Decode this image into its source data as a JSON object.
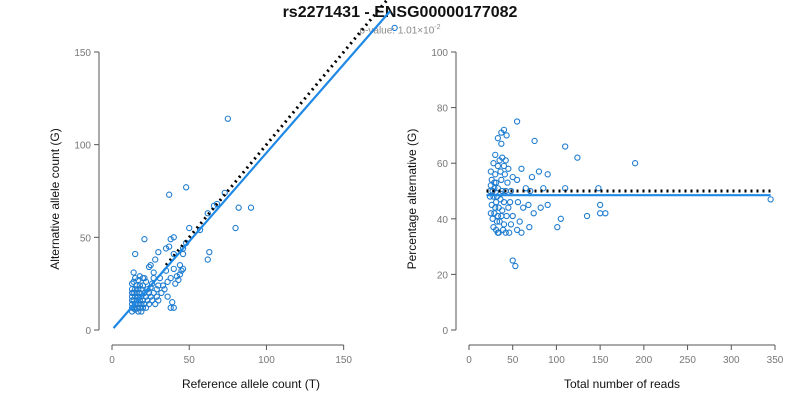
{
  "header": {
    "title": "rs2271431 - ENSG00000177082",
    "pvalue_prefix": "p-value: 1.01×10",
    "pvalue_exponent": "-2"
  },
  "colors": {
    "points": "#1f7ccf",
    "fit_line": "#1e88e5",
    "reference_line": "#000000"
  },
  "chart_data": [
    {
      "type": "scatter",
      "xlabel": "Reference allele count (T)",
      "ylabel": "Alternative allele count (G)",
      "xlim": [
        0,
        180
      ],
      "ylim": [
        0,
        150
      ],
      "xticks": [
        0,
        50,
        100,
        150
      ],
      "yticks": [
        0,
        50,
        100,
        150
      ],
      "grid": false,
      "reference_line": {
        "style": "dotted",
        "from": [
          35,
          35
        ],
        "to": [
          180,
          180
        ]
      },
      "fit_line": {
        "from": [
          1,
          1
        ],
        "to": [
          180,
          172
        ]
      },
      "points": [
        [
          183,
          163
        ],
        [
          75,
          114
        ],
        [
          73,
          74
        ],
        [
          68,
          68
        ],
        [
          66,
          67
        ],
        [
          90,
          66
        ],
        [
          82,
          66
        ],
        [
          62,
          63
        ],
        [
          48,
          77
        ],
        [
          37,
          73
        ],
        [
          57,
          54
        ],
        [
          50,
          55
        ],
        [
          80,
          55
        ],
        [
          38,
          49
        ],
        [
          40,
          50
        ],
        [
          48,
          47
        ],
        [
          37,
          45
        ],
        [
          35,
          44
        ],
        [
          46,
          44
        ],
        [
          46,
          41
        ],
        [
          63,
          42
        ],
        [
          62,
          38
        ],
        [
          40,
          41
        ],
        [
          30,
          42
        ],
        [
          28,
          38
        ],
        [
          25,
          35
        ],
        [
          44,
          35
        ],
        [
          46,
          33
        ],
        [
          40,
          33
        ],
        [
          35,
          32
        ],
        [
          42,
          29
        ],
        [
          44,
          30
        ],
        [
          38,
          28
        ],
        [
          31,
          28
        ],
        [
          36,
          26
        ],
        [
          41,
          25
        ],
        [
          30,
          24
        ],
        [
          25,
          23
        ],
        [
          22,
          26
        ],
        [
          27,
          31
        ],
        [
          21,
          49
        ],
        [
          24,
          34
        ],
        [
          20,
          28
        ],
        [
          21,
          28
        ],
        [
          17,
          27
        ],
        [
          18,
          29
        ],
        [
          14,
          31
        ],
        [
          15,
          41
        ],
        [
          13,
          25
        ],
        [
          13,
          22
        ],
        [
          13,
          20
        ],
        [
          13,
          18
        ],
        [
          13,
          16
        ],
        [
          13,
          14
        ],
        [
          13,
          12
        ],
        [
          13,
          10
        ],
        [
          14,
          26
        ],
        [
          14,
          20
        ],
        [
          14,
          16
        ],
        [
          14,
          12
        ],
        [
          15,
          28
        ],
        [
          15,
          22
        ],
        [
          15,
          18
        ],
        [
          15,
          14
        ],
        [
          15,
          11
        ],
        [
          16,
          24
        ],
        [
          16,
          20
        ],
        [
          16,
          16
        ],
        [
          16,
          12
        ],
        [
          17,
          22
        ],
        [
          17,
          18
        ],
        [
          17,
          14
        ],
        [
          17,
          10
        ],
        [
          18,
          24
        ],
        [
          18,
          20
        ],
        [
          18,
          16
        ],
        [
          18,
          12
        ],
        [
          19,
          22
        ],
        [
          19,
          18
        ],
        [
          19,
          14
        ],
        [
          19,
          10
        ],
        [
          20,
          24
        ],
        [
          20,
          16
        ],
        [
          20,
          12
        ],
        [
          21,
          20
        ],
        [
          21,
          14
        ],
        [
          22,
          18
        ],
        [
          22,
          12
        ],
        [
          23,
          22
        ],
        [
          23,
          16
        ],
        [
          24,
          20
        ],
        [
          24,
          14
        ],
        [
          25,
          18
        ],
        [
          26,
          16
        ],
        [
          27,
          20
        ],
        [
          28,
          14
        ],
        [
          29,
          18
        ],
        [
          30,
          16
        ],
        [
          32,
          20
        ],
        [
          34,
          22
        ],
        [
          36,
          18
        ],
        [
          38,
          12
        ],
        [
          40,
          12
        ],
        [
          39,
          15
        ],
        [
          33,
          24
        ],
        [
          29,
          22
        ],
        [
          26,
          25
        ],
        [
          43,
          27
        ],
        [
          45,
          32
        ],
        [
          27,
          28
        ]
      ]
    },
    {
      "type": "scatter",
      "xlabel": "Total number of reads",
      "ylabel": "Percentage alternative (G)",
      "xlim": [
        0,
        350
      ],
      "ylim": [
        0,
        100
      ],
      "xticks": [
        0,
        50,
        100,
        150,
        200,
        250,
        300,
        350
      ],
      "yticks": [
        0,
        20,
        40,
        60,
        80,
        100
      ],
      "grid": false,
      "reference_line": {
        "style": "dotted",
        "y": 50,
        "from_x": 20,
        "to_x": 345
      },
      "fit_line": {
        "y": 48.5,
        "from_x": 20,
        "to_x": 345
      },
      "points": [
        [
          55,
          75
        ],
        [
          37,
          71
        ],
        [
          40,
          72
        ],
        [
          33,
          69
        ],
        [
          43,
          70
        ],
        [
          37,
          67
        ],
        [
          75,
          68
        ],
        [
          110,
          66
        ],
        [
          30,
          63
        ],
        [
          35,
          61
        ],
        [
          38,
          62
        ],
        [
          42,
          61
        ],
        [
          124,
          62
        ],
        [
          28,
          60
        ],
        [
          33,
          59
        ],
        [
          40,
          59
        ],
        [
          45,
          58
        ],
        [
          60,
          58
        ],
        [
          80,
          57
        ],
        [
          190,
          60
        ],
        [
          25,
          57
        ],
        [
          30,
          56
        ],
        [
          36,
          57
        ],
        [
          41,
          56
        ],
        [
          50,
          55
        ],
        [
          72,
          55
        ],
        [
          90,
          56
        ],
        [
          26,
          54
        ],
        [
          31,
          53
        ],
        [
          37,
          54
        ],
        [
          44,
          53
        ],
        [
          55,
          54
        ],
        [
          65,
          51
        ],
        [
          85,
          51
        ],
        [
          25,
          52
        ],
        [
          29,
          51
        ],
        [
          33,
          51
        ],
        [
          38,
          50
        ],
        [
          42,
          50
        ],
        [
          48,
          50
        ],
        [
          70,
          50
        ],
        [
          110,
          51
        ],
        [
          148,
          51
        ],
        [
          24,
          48
        ],
        [
          28,
          48
        ],
        [
          32,
          48
        ],
        [
          36,
          47
        ],
        [
          40,
          46
        ],
        [
          47,
          46
        ],
        [
          56,
          46
        ],
        [
          68,
          45
        ],
        [
          90,
          45
        ],
        [
          150,
          45
        ],
        [
          26,
          45
        ],
        [
          30,
          44
        ],
        [
          34,
          44
        ],
        [
          38,
          43
        ],
        [
          45,
          44
        ],
        [
          62,
          44
        ],
        [
          82,
          44
        ],
        [
          25,
          42
        ],
        [
          29,
          42
        ],
        [
          33,
          41
        ],
        [
          37,
          41
        ],
        [
          43,
          41
        ],
        [
          50,
          41
        ],
        [
          74,
          42
        ],
        [
          150,
          42
        ],
        [
          156,
          42
        ],
        [
          135,
          41
        ],
        [
          27,
          40
        ],
        [
          32,
          39
        ],
        [
          35,
          39
        ],
        [
          40,
          38
        ],
        [
          48,
          38
        ],
        [
          58,
          39
        ],
        [
          105,
          40
        ],
        [
          28,
          37
        ],
        [
          31,
          36
        ],
        [
          34,
          35
        ],
        [
          39,
          36
        ],
        [
          46,
          35
        ],
        [
          55,
          36
        ],
        [
          69,
          37
        ],
        [
          101,
          37
        ],
        [
          33,
          35
        ],
        [
          42,
          35
        ],
        [
          60,
          35
        ],
        [
          50,
          25
        ],
        [
          53,
          23
        ],
        [
          345,
          47
        ],
        [
          27,
          50
        ],
        [
          31,
          46
        ],
        [
          24,
          50
        ],
        [
          36,
          49
        ],
        [
          29,
          53
        ]
      ]
    }
  ]
}
